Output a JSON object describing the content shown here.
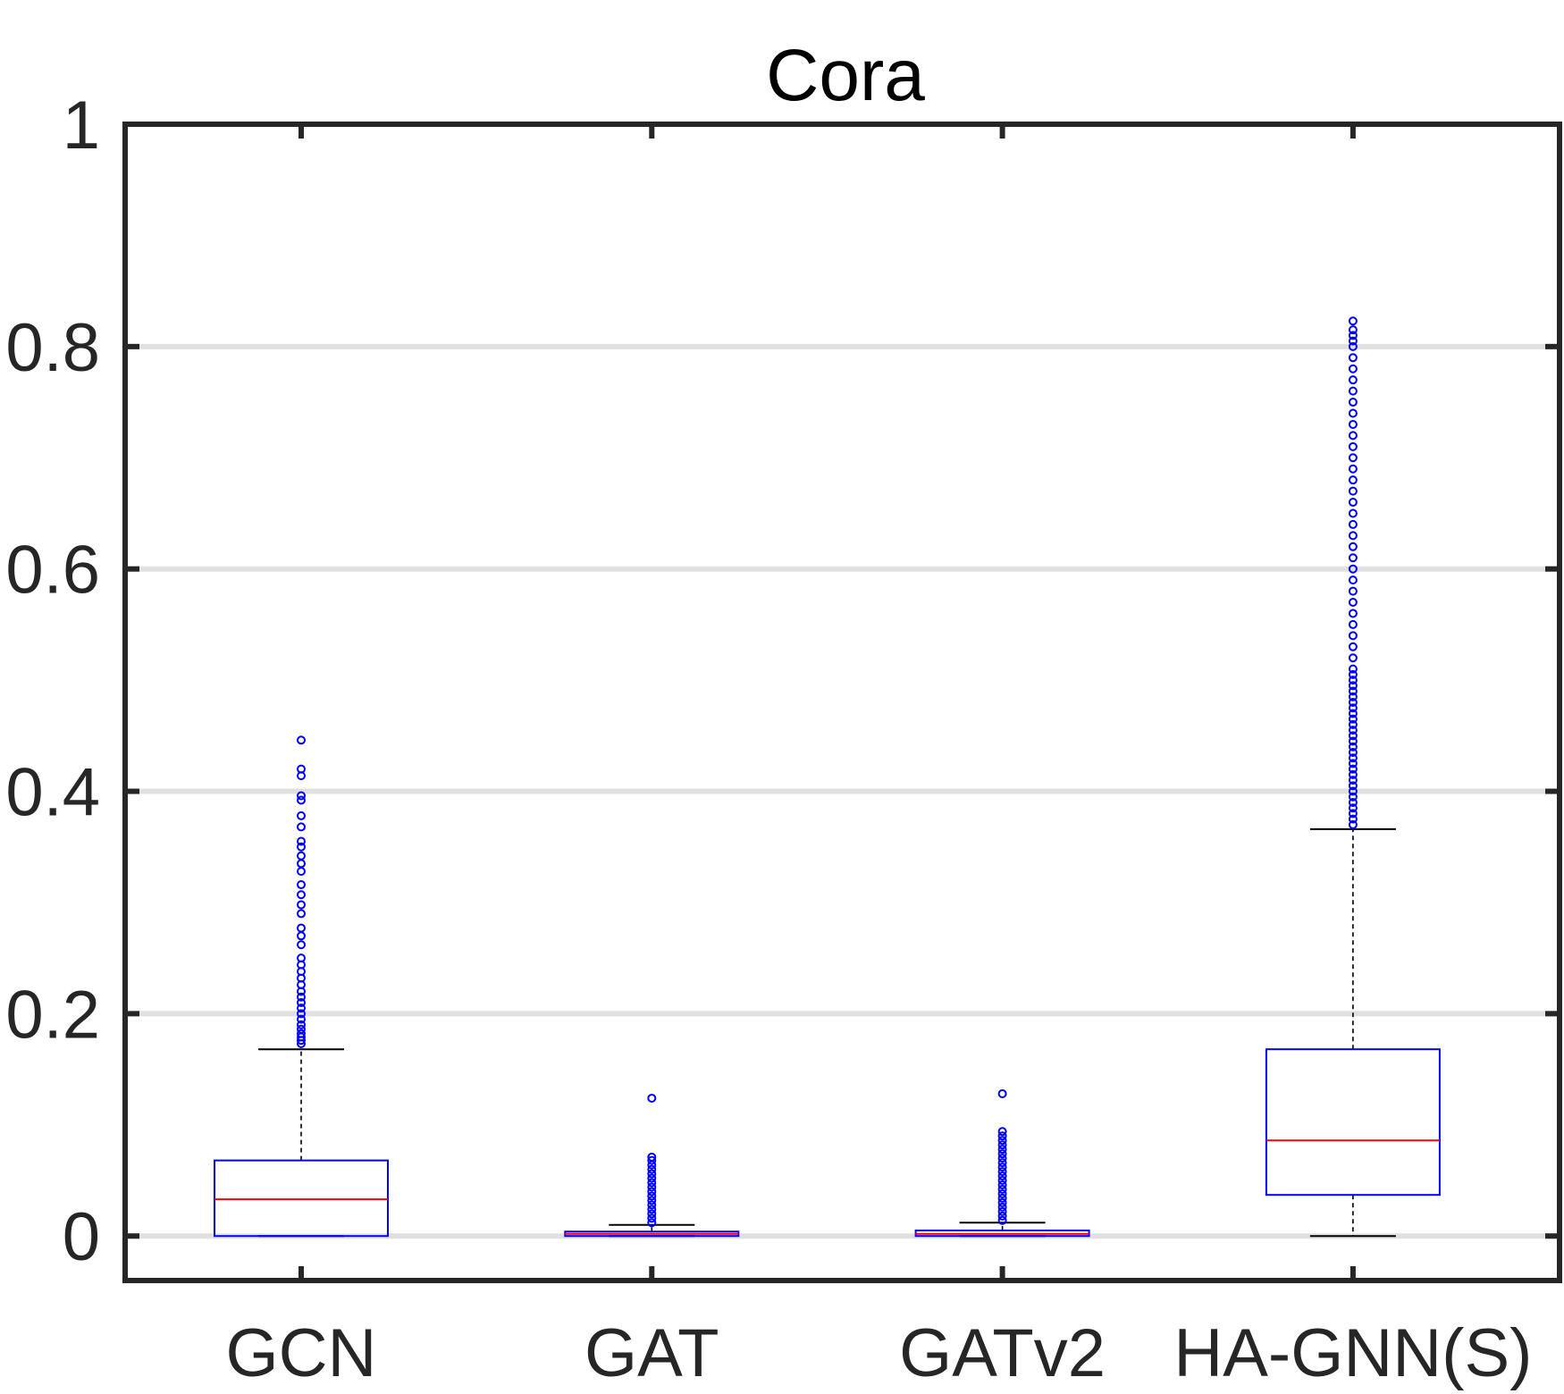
{
  "chart_data": {
    "type": "box",
    "title": "Cora",
    "xlabel": "",
    "ylabel": "",
    "ylim": [
      -0.04,
      1.0
    ],
    "yticks": [
      0,
      0.2,
      0.4,
      0.6,
      0.8,
      1
    ],
    "ytick_labels": [
      "0",
      "0.2",
      "0.4",
      "0.6",
      "0.8",
      "1"
    ],
    "grid": "horizontal",
    "categories": [
      "GCN",
      "GAT",
      "GATv2",
      "HA-GNN(S)"
    ],
    "boxes": [
      {
        "name": "GCN",
        "whisker_low": 0.0,
        "q1": 0.0,
        "median": 0.033,
        "q3": 0.068,
        "whisker_high": 0.168,
        "outliers": [
          0.173,
          0.176,
          0.179,
          0.182,
          0.186,
          0.19,
          0.195,
          0.2,
          0.205,
          0.21,
          0.215,
          0.22,
          0.226,
          0.232,
          0.238,
          0.244,
          0.25,
          0.262,
          0.27,
          0.277,
          0.29,
          0.298,
          0.307,
          0.316,
          0.328,
          0.335,
          0.342,
          0.35,
          0.355,
          0.368,
          0.378,
          0.392,
          0.396,
          0.414,
          0.42,
          0.446
        ]
      },
      {
        "name": "GAT",
        "whisker_low": 0.0,
        "q1": 0.0,
        "median": 0.002,
        "q3": 0.004,
        "whisker_high": 0.01,
        "outliers": [
          0.012,
          0.016,
          0.02,
          0.024,
          0.028,
          0.032,
          0.036,
          0.04,
          0.044,
          0.048,
          0.052,
          0.056,
          0.06,
          0.064,
          0.068,
          0.071,
          0.124
        ]
      },
      {
        "name": "GATv2",
        "whisker_low": 0.0,
        "q1": 0.0,
        "median": 0.002,
        "q3": 0.005,
        "whisker_high": 0.012,
        "outliers": [
          0.014,
          0.018,
          0.022,
          0.026,
          0.03,
          0.034,
          0.038,
          0.042,
          0.046,
          0.05,
          0.054,
          0.058,
          0.062,
          0.066,
          0.07,
          0.074,
          0.078,
          0.082,
          0.086,
          0.09,
          0.094,
          0.128
        ]
      },
      {
        "name": "HA-GNN(S)",
        "whisker_low": 0.0,
        "q1": 0.037,
        "median": 0.086,
        "q3": 0.168,
        "whisker_high": 0.366,
        "outliers": [
          0.37,
          0.375,
          0.38,
          0.385,
          0.39,
          0.395,
          0.4,
          0.405,
          0.41,
          0.415,
          0.42,
          0.425,
          0.43,
          0.435,
          0.44,
          0.445,
          0.45,
          0.455,
          0.46,
          0.465,
          0.47,
          0.475,
          0.48,
          0.485,
          0.49,
          0.495,
          0.5,
          0.505,
          0.51,
          0.52,
          0.53,
          0.54,
          0.55,
          0.56,
          0.57,
          0.58,
          0.59,
          0.6,
          0.61,
          0.62,
          0.63,
          0.64,
          0.65,
          0.66,
          0.67,
          0.68,
          0.69,
          0.7,
          0.71,
          0.72,
          0.73,
          0.74,
          0.75,
          0.76,
          0.77,
          0.78,
          0.79,
          0.8,
          0.805,
          0.81,
          0.815,
          0.823
        ]
      }
    ],
    "colors": {
      "box": "#0000ff",
      "median": "#ff0000",
      "whisker": "#000000",
      "outlier": "#0000ff",
      "grid": "#e0e0e0",
      "axis": "#262626"
    }
  }
}
